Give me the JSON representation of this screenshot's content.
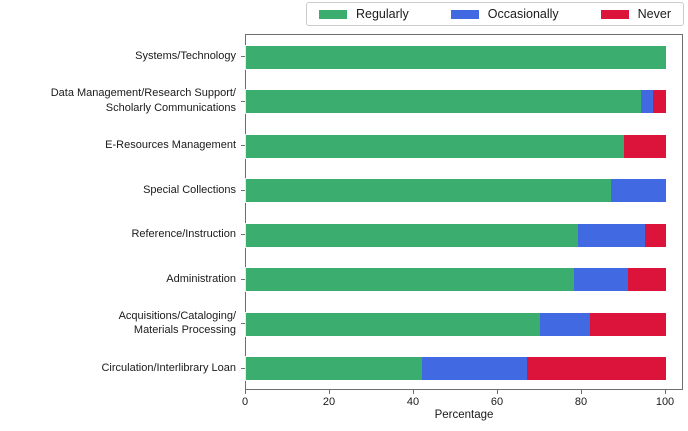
{
  "chart_data": {
    "type": "bar",
    "orientation": "horizontal",
    "stacked": true,
    "title": "",
    "xlabel": "Percentage",
    "ylabel": "",
    "xlim": [
      0,
      104
    ],
    "x_ticks": [
      0,
      20,
      40,
      60,
      80,
      100
    ],
    "grid": false,
    "legend_position": "top",
    "categories": [
      "Systems/Technology",
      "Data Management/Research Support/\nScholarly Communications",
      "E-Resources Management",
      "Special Collections",
      "Reference/Instruction",
      "Administration",
      "Acquisitions/Cataloging/\nMaterials Processing",
      "Circulation/Interlibrary Loan"
    ],
    "series": [
      {
        "name": "Regularly",
        "color": "#3BAE6F",
        "values": [
          100,
          94,
          90,
          87,
          79,
          78,
          70,
          42
        ]
      },
      {
        "name": "Occasionally",
        "color": "#4169E1",
        "values": [
          0,
          3,
          0,
          13,
          16,
          13,
          12,
          25
        ]
      },
      {
        "name": "Never",
        "color": "#DC143C",
        "values": [
          0,
          3,
          10,
          0,
          5,
          9,
          18,
          33
        ]
      }
    ]
  },
  "colors": {
    "background": "#ffffff",
    "spine": "#6e6e6e",
    "text": "#1a1a1a",
    "legend_border": "#cccccc",
    "bar_edge": "rgba(255,255,255,0.85)"
  }
}
